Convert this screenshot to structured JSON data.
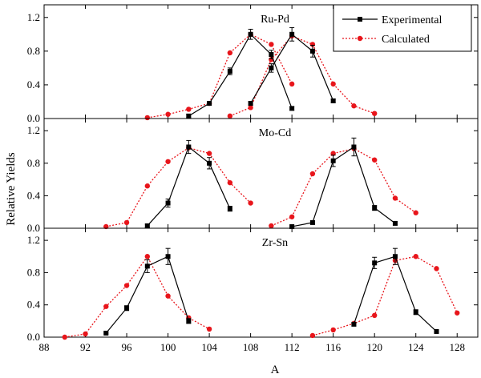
{
  "chart_data": {
    "type": "line",
    "xlabel": "A",
    "ylabel": "Relative Yields",
    "xlim": [
      88,
      130
    ],
    "x_ticks": [
      "88",
      "92",
      "96",
      "100",
      "104",
      "108",
      "112",
      "116",
      "120",
      "124",
      "128"
    ],
    "x_tick_values": [
      88,
      92,
      96,
      100,
      104,
      108,
      112,
      116,
      120,
      124,
      128
    ],
    "y_ticks": [
      "0.0",
      "0.4",
      "0.8",
      "1.2"
    ],
    "y_tick_values": [
      0,
      0.4,
      0.8,
      1.2
    ],
    "ylim": [
      0,
      1.35
    ],
    "grid": false,
    "legend_position": "top-right",
    "legend": [
      {
        "label": "Experimental",
        "style": "black-solid-square"
      },
      {
        "label": "Calculated",
        "style": "red-dotted-circle"
      }
    ],
    "colors": {
      "experimental": "#000000",
      "calculated": "#e8151b"
    },
    "panels": [
      {
        "title": "Ru-Pd",
        "experimental": [
          {
            "x": [
              102,
              104,
              106,
              108,
              110,
              112
            ],
            "y": [
              0.03,
              0.18,
              0.56,
              1.0,
              0.76,
              0.12
            ],
            "err": [
              0.02,
              0.02,
              0.04,
              0.06,
              0.05,
              0.02
            ]
          },
          {
            "x": [
              108,
              110,
              112,
              114,
              116
            ],
            "y": [
              0.18,
              0.6,
              1.0,
              0.8,
              0.21
            ],
            "err": [
              0.02,
              0.05,
              0.08,
              0.07,
              0.02
            ]
          }
        ],
        "calculated": [
          {
            "x": [
              98,
              100,
              102,
              104,
              106,
              108,
              110,
              112
            ],
            "y": [
              0.01,
              0.05,
              0.11,
              0.18,
              0.78,
              1.0,
              0.88,
              0.41
            ]
          },
          {
            "x": [
              106,
              108,
              110,
              112,
              114,
              116,
              118,
              120
            ],
            "y": [
              0.03,
              0.13,
              0.7,
              0.98,
              0.88,
              0.41,
              0.15,
              0.06
            ]
          }
        ]
      },
      {
        "title": "Mo-Cd",
        "experimental": [
          {
            "x": [
              98,
              100,
              102,
              104,
              106
            ],
            "y": [
              0.03,
              0.31,
              1.0,
              0.8,
              0.24
            ],
            "err": [
              0.02,
              0.05,
              0.08,
              0.07,
              0.03
            ]
          },
          {
            "x": [
              112,
              114,
              116,
              118,
              120,
              122
            ],
            "y": [
              0.02,
              0.07,
              0.83,
              1.0,
              0.25,
              0.06
            ],
            "err": [
              0.01,
              0.02,
              0.07,
              0.11,
              0.03,
              0.02
            ]
          }
        ],
        "calculated": [
          {
            "x": [
              94,
              96,
              98,
              100,
              102,
              104,
              106,
              108
            ],
            "y": [
              0.02,
              0.07,
              0.52,
              0.82,
              0.99,
              0.92,
              0.56,
              0.31
            ]
          },
          {
            "x": [
              110,
              112,
              114,
              116,
              118,
              120,
              122,
              124
            ],
            "y": [
              0.03,
              0.14,
              0.67,
              0.92,
              0.98,
              0.84,
              0.37,
              0.19
            ]
          }
        ]
      },
      {
        "title": "Zr-Sn",
        "experimental": [
          {
            "x": [
              94,
              96,
              98,
              100,
              102
            ],
            "y": [
              0.05,
              0.36,
              0.88,
              1.0,
              0.2
            ],
            "err": [
              0.01,
              0.03,
              0.08,
              0.1,
              0.03
            ]
          },
          {
            "x": [
              118,
              120,
              122,
              124,
              126
            ],
            "y": [
              0.16,
              0.92,
              1.0,
              0.31,
              0.07
            ],
            "err": [
              0.02,
              0.07,
              0.1,
              0.03,
              0.02
            ]
          }
        ],
        "calculated": [
          {
            "x": [
              90,
              92,
              94,
              96,
              98,
              100,
              102,
              104
            ],
            "y": [
              0.0,
              0.04,
              0.38,
              0.64,
              1.0,
              0.51,
              0.24,
              0.1
            ]
          },
          {
            "x": [
              114,
              116,
              118,
              120,
              122,
              124,
              126,
              128
            ],
            "y": [
              0.02,
              0.09,
              0.17,
              0.27,
              0.95,
              1.0,
              0.85,
              0.3
            ]
          }
        ]
      }
    ]
  }
}
